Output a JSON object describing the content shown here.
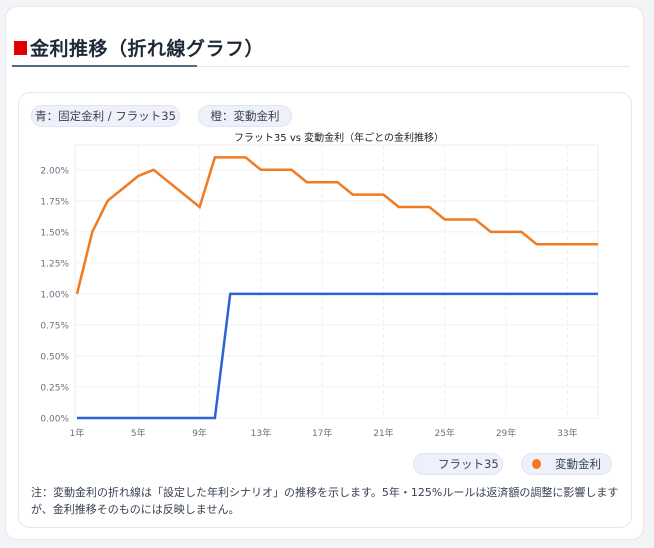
{
  "section": {
    "title": "金利推移（折れ線グラフ）",
    "accent_color": "#e00000"
  },
  "badges": [
    {
      "label": "青：固定金利 / フラット35"
    },
    {
      "label": "橙：変動金利"
    }
  ],
  "legend": [
    {
      "label": "フラット35",
      "color": "#2f62d6"
    },
    {
      "label": "変動金利",
      "color": "#f07a22"
    }
  ],
  "note": "注：変動金利の折れ線は「設定した年利シナリオ」の推移を示します。5年・125%ルールは返済額の調整に影響しますが、金利推移そのものには反映しません。",
  "chart_data": {
    "type": "line",
    "title": "フラット35 vs 変動金利（年ごとの金利推移）",
    "xlabel": "",
    "ylabel": "",
    "x": [
      1,
      2,
      3,
      4,
      5,
      6,
      7,
      8,
      9,
      10,
      11,
      12,
      13,
      14,
      15,
      16,
      17,
      18,
      19,
      20,
      21,
      22,
      23,
      24,
      25,
      26,
      27,
      28,
      29,
      30,
      31,
      32,
      33,
      34,
      35
    ],
    "x_tick_labels": [
      "1年",
      "5年",
      "9年",
      "13年",
      "17年",
      "21年",
      "25年",
      "29年",
      "33年"
    ],
    "y_tick_labels": [
      "0.00%",
      "0.25%",
      "0.50%",
      "0.75%",
      "1.00%",
      "1.25%",
      "1.50%",
      "1.75%",
      "2.00%"
    ],
    "ylim": [
      0,
      2.2
    ],
    "grid": true,
    "legend_position": "bottom-right",
    "series": [
      {
        "name": "フラット35",
        "color": "#2f62d6",
        "values": [
          0,
          0,
          0,
          0,
          0,
          0,
          0,
          0,
          0,
          0,
          1.0,
          1.0,
          1.0,
          1.0,
          1.0,
          1.0,
          1.0,
          1.0,
          1.0,
          1.0,
          1.0,
          1.0,
          1.0,
          1.0,
          1.0,
          1.0,
          1.0,
          1.0,
          1.0,
          1.0,
          1.0,
          1.0,
          1.0,
          1.0,
          1.0
        ]
      },
      {
        "name": "変動金利",
        "color": "#f07a22",
        "values": [
          1.0,
          1.5,
          1.75,
          1.85,
          1.95,
          2.0,
          1.9,
          1.8,
          1.7,
          2.1,
          2.1,
          2.1,
          2.0,
          2.0,
          2.0,
          1.9,
          1.9,
          1.9,
          1.8,
          1.8,
          1.8,
          1.7,
          1.7,
          1.7,
          1.6,
          1.6,
          1.6,
          1.5,
          1.5,
          1.5,
          1.4,
          1.4,
          1.4,
          1.4,
          1.4
        ]
      }
    ]
  }
}
